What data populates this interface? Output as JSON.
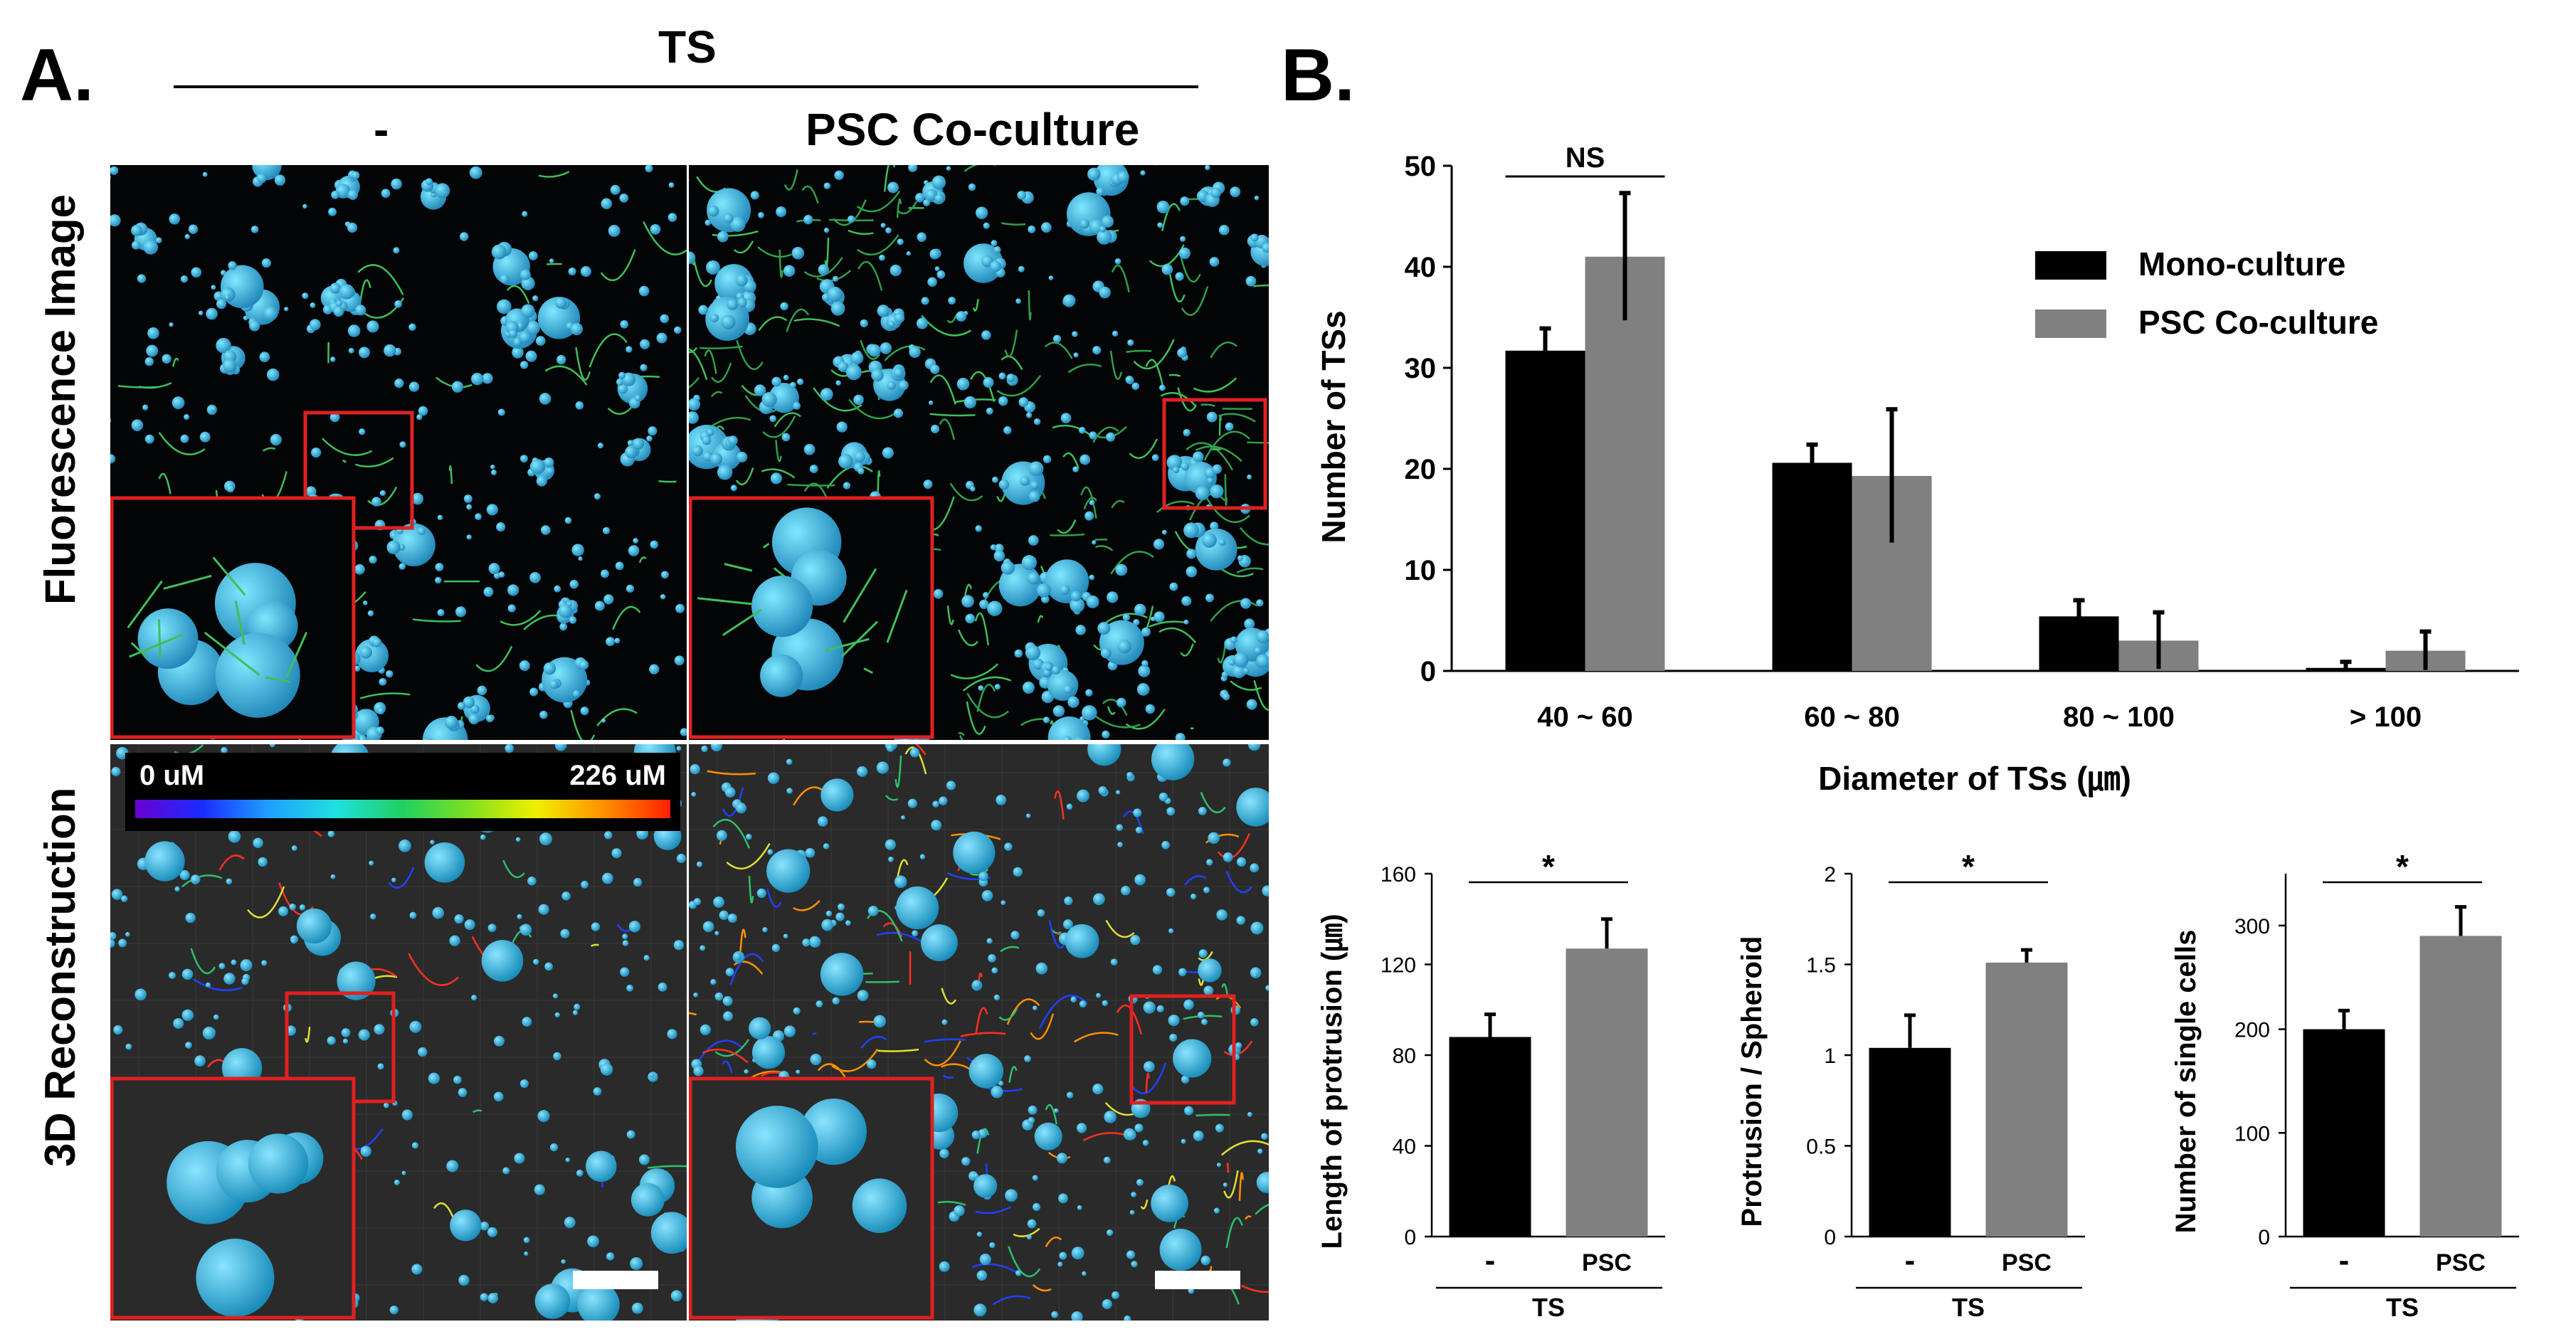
{
  "panels": {
    "a_label": "A.",
    "b_label": "B."
  },
  "panel_a": {
    "group_header": "TS",
    "col_headers": [
      "-",
      "PSC Co-culture"
    ],
    "row_labels": [
      "Fluorescence Image",
      "3D Reconstruction"
    ],
    "colorbar": {
      "min_label": "0 uM",
      "max_label": "226 uM"
    }
  },
  "colors": {
    "mono": "#000000",
    "psc": "#808080",
    "cells": "#2ab4d8",
    "inset_border": "#e02020"
  },
  "chart_data": [
    {
      "type": "bar",
      "categories": [
        "40 ~ 60",
        "60 ~ 80",
        "80 ~ 100",
        "> 100"
      ],
      "series": [
        {
          "name": "Mono-culture",
          "values": [
            31.7,
            20.6,
            5.4,
            0.3
          ],
          "errors": [
            2.2,
            1.8,
            1.6,
            0.6
          ]
        },
        {
          "name": "PSC Co-culture",
          "values": [
            41.0,
            19.3,
            3.0,
            2.0
          ],
          "errors": [
            6.3,
            6.6,
            2.8,
            1.9
          ]
        }
      ],
      "xlabel": "Diameter of TSs (㎛)",
      "ylabel": "Number of TSs",
      "ylim": [
        0,
        50
      ],
      "yticks": [
        "0",
        "10",
        "20",
        "30",
        "40",
        "50"
      ],
      "annotations": [
        "NS"
      ],
      "legend": "top-right"
    },
    {
      "type": "bar",
      "categories": [
        "-",
        "PSC"
      ],
      "values": [
        88,
        127
      ],
      "errors": [
        10,
        13
      ],
      "ylabel": "Length of protrusion (㎛)",
      "group_label": "TS",
      "ylim": [
        0,
        160
      ],
      "yticks": [
        "0",
        "40",
        "80",
        "120",
        "160"
      ],
      "annotations": [
        "*"
      ]
    },
    {
      "type": "bar",
      "categories": [
        "-",
        "PSC"
      ],
      "values": [
        1.04,
        1.51
      ],
      "errors": [
        0.18,
        0.07
      ],
      "ylabel": "Protrusion / Spheroid",
      "group_label": "TS",
      "ylim": [
        0,
        2
      ],
      "yticks": [
        "0",
        "0.5",
        "1",
        "1.5",
        "2"
      ],
      "annotations": [
        "*"
      ]
    },
    {
      "type": "bar",
      "categories": [
        "-",
        "PSC"
      ],
      "values": [
        200,
        290
      ],
      "errors": [
        18,
        28
      ],
      "ylabel": "Number of single cells",
      "group_label": "TS",
      "ylim": [
        0,
        350
      ],
      "yticks": [
        "0",
        "100",
        "200",
        "300"
      ],
      "annotations": [
        "*"
      ]
    }
  ]
}
